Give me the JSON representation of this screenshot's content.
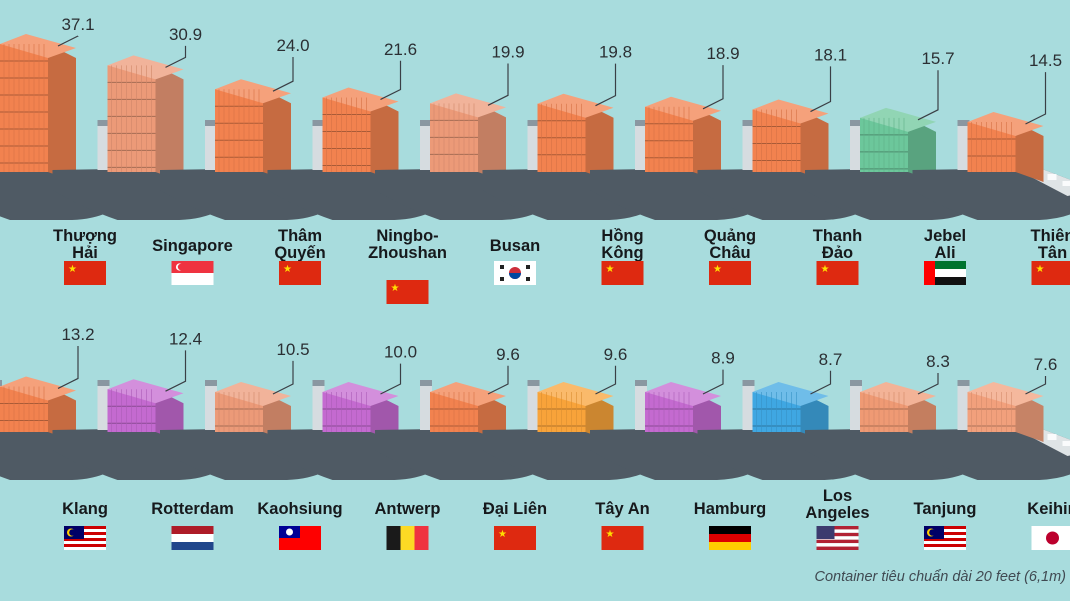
{
  "chart_data": {
    "type": "bar",
    "title": "",
    "unit": "",
    "note": "Container tiêu chuẩn dài 20 feet (6,1m)",
    "categories": [
      "Thượng Hải",
      "Singapore",
      "Thâm Quyến",
      "Ningbo-Zhoushan",
      "Busan",
      "Hồng Kông",
      "Quảng Châu",
      "Thanh Đảo",
      "Jebel Ali",
      "Thiên Tân",
      "Klang",
      "Rotterdam",
      "Kaohsiung",
      "Antwerp",
      "Đại Liên",
      "Tây An",
      "Hamburg",
      "Los Angeles",
      "Tanjung",
      "Keihin"
    ],
    "values": [
      37.1,
      30.9,
      24.0,
      21.6,
      19.9,
      19.8,
      18.9,
      18.1,
      15.7,
      14.5,
      13.2,
      12.4,
      10.5,
      10.0,
      9.6,
      9.6,
      8.9,
      8.7,
      8.3,
      7.6
    ],
    "value_labels": [
      "37.1",
      "30.9",
      "24.0",
      "21.6",
      "19.9",
      "19.8",
      "18.9",
      "18.1",
      "15.7",
      "14.5",
      "13.2",
      "12.4",
      "10.5",
      "10.0",
      "9.6",
      "9.6",
      "8.9",
      "8.7",
      "8.3",
      "7.6"
    ],
    "name_lines": [
      [
        "Thượng",
        "Hải"
      ],
      [
        "Singapore"
      ],
      [
        "Thâm",
        "Quyến"
      ],
      [
        "Ningbo-",
        "Zhoushan"
      ],
      [
        "Busan"
      ],
      [
        "Hồng",
        "Kông"
      ],
      [
        "Quảng",
        "Châu"
      ],
      [
        "Thanh",
        "Đảo"
      ],
      [
        "Jebel",
        "Ali"
      ],
      [
        "Thiên",
        "Tân"
      ],
      [
        "Klang"
      ],
      [
        "Rotterdam"
      ],
      [
        "Kaohsiung"
      ],
      [
        "Antwerp"
      ],
      [
        "Đại Liên"
      ],
      [
        "Tây An"
      ],
      [
        "Hamburg"
      ],
      [
        "Los",
        "Angeles"
      ],
      [
        "Tanjung"
      ],
      [
        "Keihin"
      ]
    ],
    "countries": [
      "china",
      "singapore",
      "china",
      "china",
      "south-korea",
      "china",
      "china",
      "china",
      "uae",
      "china",
      "malaysia",
      "netherlands",
      "taiwan",
      "belgium",
      "china",
      "china",
      "germany",
      "usa",
      "malaysia",
      "japan"
    ],
    "container_colors": [
      "#f2824f",
      "#ec9a78",
      "#f2824f",
      "#f2824f",
      "#ec9a78",
      "#f2824f",
      "#f2824f",
      "#f2824f",
      "#6cc79b",
      "#f2824f",
      "#f2824f",
      "#c46ad0",
      "#ec9a78",
      "#c46ad0",
      "#f2824f",
      "#f8a33a",
      "#c46ad0",
      "#3fa7e2",
      "#ef9a74",
      "#f2a07c"
    ]
  },
  "colors": {
    "background": "#a8dcdd",
    "hull": "#4f5a64",
    "deck": "#dfe4e6",
    "leader": "#3a3f45"
  }
}
